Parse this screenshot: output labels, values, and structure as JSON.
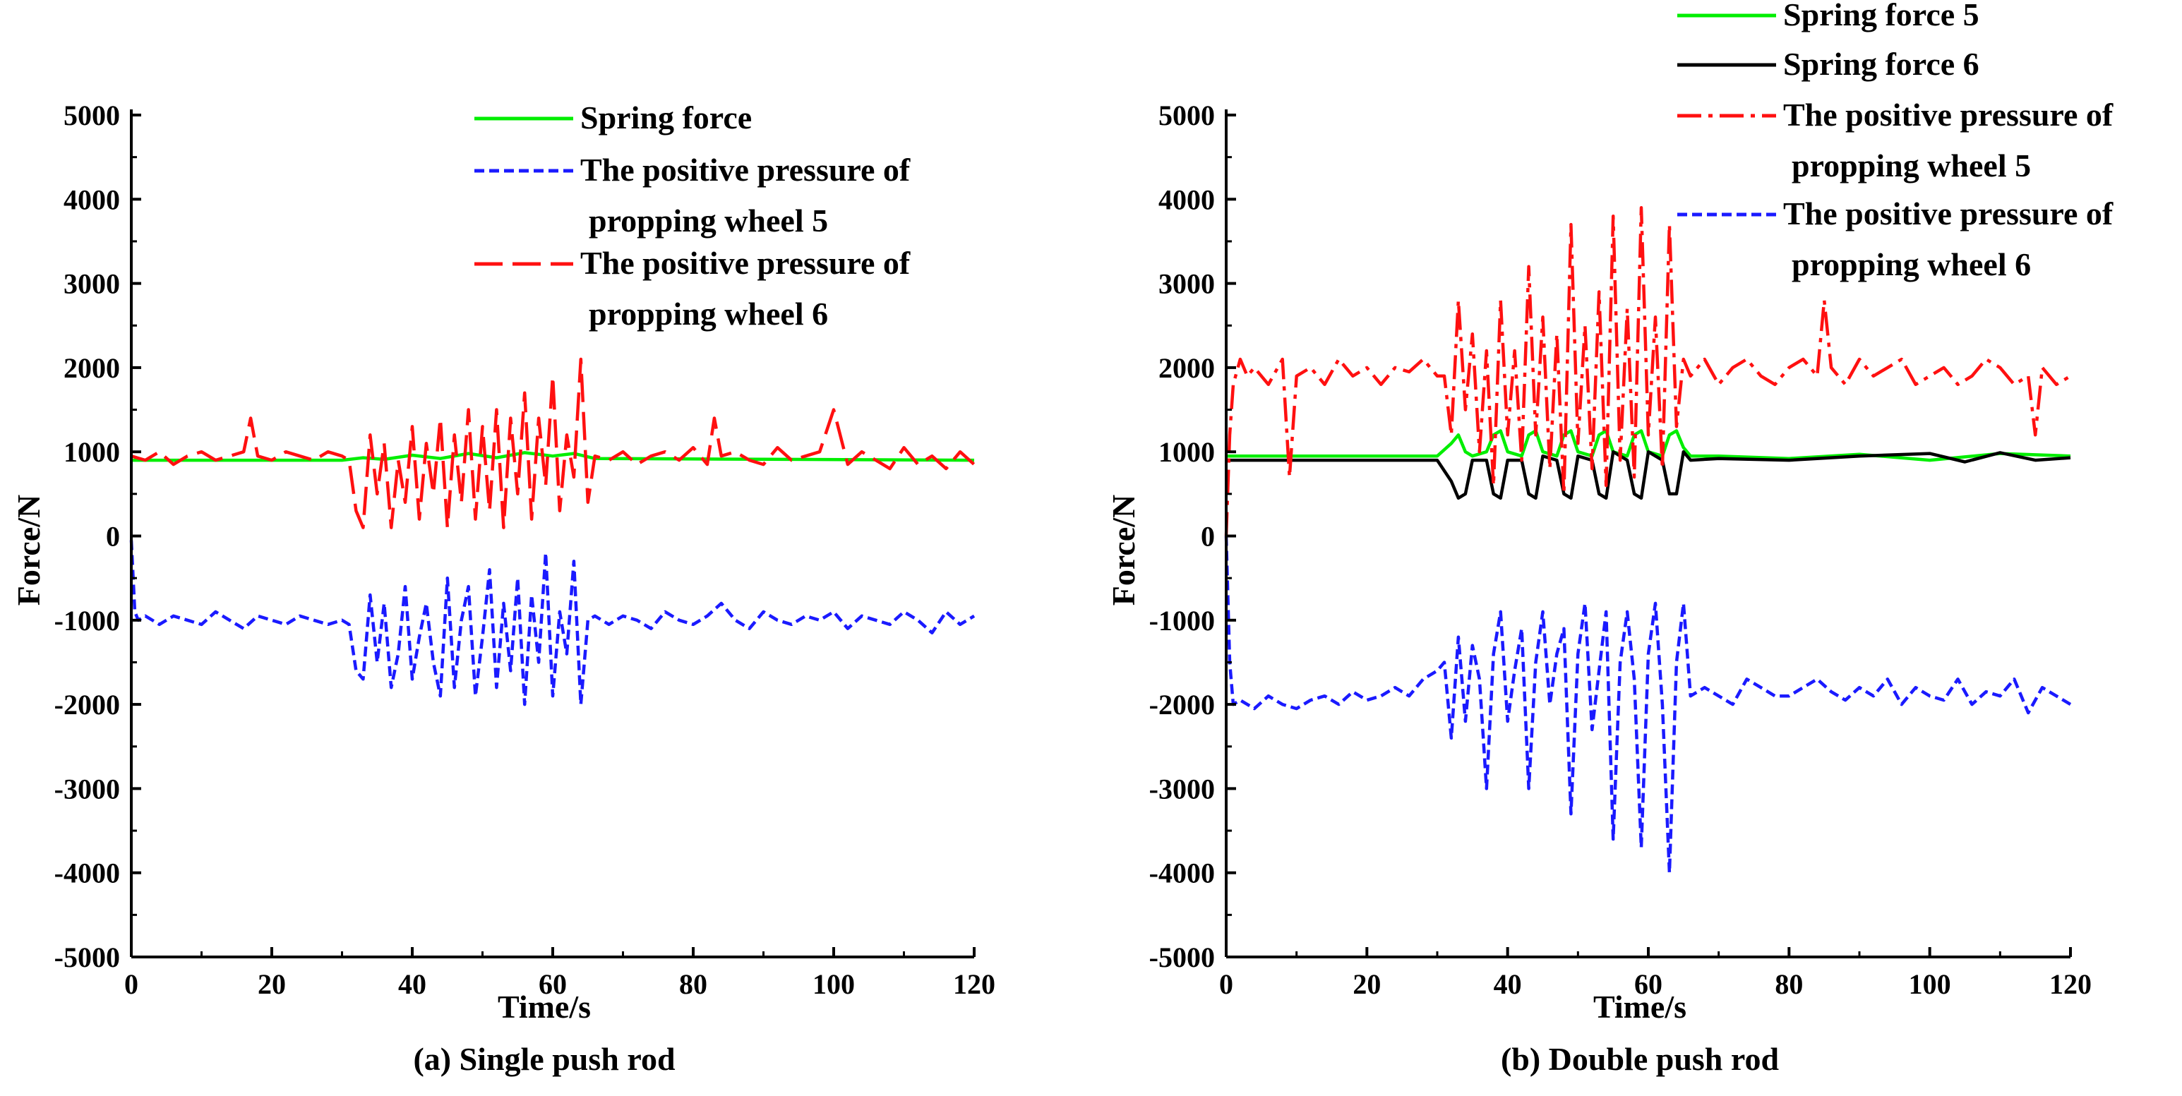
{
  "colors": {
    "green": "#00ee00",
    "blue": "#1a1aff",
    "red": "#ff1010",
    "black": "#000000",
    "axis": "#000000"
  },
  "chart_data": [
    {
      "type": "line",
      "caption": "(a) Single push rod",
      "xlabel": "Time/s",
      "ylabel": "Force/N",
      "xlim": [
        0,
        120
      ],
      "ylim": [
        -5000,
        5000
      ],
      "xticks": [
        0,
        20,
        40,
        60,
        80,
        100,
        120
      ],
      "yticks": [
        5000,
        4000,
        3000,
        2000,
        1000,
        0,
        -1000,
        -2000,
        -3000,
        -4000,
        -5000
      ],
      "legend": [
        {
          "lines": [
            "Spring force"
          ],
          "color": "green",
          "dash": "solid"
        },
        {
          "lines": [
            "The positive pressure of",
            "propping wheel 5"
          ],
          "color": "blue",
          "dash": "short"
        },
        {
          "lines": [
            "The positive pressure of",
            "propping wheel 6"
          ],
          "color": "red",
          "dash": "long"
        }
      ],
      "series": [
        {
          "name": "Spring force",
          "color": "green",
          "dash": "solid",
          "x": [
            0,
            30,
            33,
            36,
            40,
            44,
            48,
            52,
            56,
            60,
            63,
            66,
            120
          ],
          "y": [
            900,
            900,
            930,
            910,
            960,
            920,
            980,
            930,
            990,
            950,
            980,
            920,
            900
          ]
        },
        {
          "name": "The positive pressure of propping wheel 5",
          "color": "blue",
          "dash": "short",
          "x": [
            0,
            0.5,
            1,
            2,
            4,
            6,
            8,
            10,
            12,
            14,
            16,
            18,
            20,
            22,
            24,
            26,
            28,
            30,
            31,
            32,
            33,
            34,
            35,
            36,
            37,
            38,
            39,
            40,
            41,
            42,
            43,
            44,
            45,
            46,
            47,
            48,
            49,
            50,
            51,
            52,
            53,
            54,
            55,
            56,
            57,
            58,
            59,
            60,
            61,
            62,
            63,
            64,
            65,
            66,
            68,
            70,
            72,
            74,
            76,
            78,
            80,
            82,
            84,
            86,
            88,
            90,
            92,
            94,
            96,
            98,
            100,
            102,
            104,
            106,
            108,
            110,
            112,
            114,
            116,
            118,
            120
          ],
          "y": [
            -50,
            -900,
            -1000,
            -950,
            -1050,
            -950,
            -1000,
            -1050,
            -900,
            -1000,
            -1100,
            -950,
            -1000,
            -1050,
            -950,
            -1000,
            -1050,
            -1000,
            -1050,
            -1600,
            -1700,
            -700,
            -1500,
            -800,
            -1800,
            -1400,
            -600,
            -1700,
            -1200,
            -800,
            -1500,
            -1900,
            -500,
            -1800,
            -1000,
            -600,
            -1900,
            -1200,
            -400,
            -1800,
            -800,
            -1600,
            -500,
            -2000,
            -700,
            -1500,
            -200,
            -1900,
            -900,
            -1400,
            -300,
            -2000,
            -1000,
            -950,
            -1050,
            -950,
            -1000,
            -1100,
            -900,
            -1000,
            -1050,
            -950,
            -800,
            -1000,
            -1100,
            -900,
            -1000,
            -1050,
            -950,
            -1000,
            -900,
            -1100,
            -950,
            -1000,
            -1050,
            -900,
            -1000,
            -1150,
            -900,
            -1050,
            -950
          ]
        },
        {
          "name": "The positive pressure of propping wheel 6",
          "color": "red",
          "dash": "long",
          "x": [
            0,
            2,
            4,
            6,
            8,
            10,
            12,
            14,
            16,
            17,
            18,
            20,
            22,
            24,
            26,
            28,
            30,
            31,
            32,
            33,
            34,
            35,
            36,
            37,
            38,
            39,
            40,
            41,
            42,
            43,
            44,
            45,
            46,
            47,
            48,
            49,
            50,
            51,
            52,
            53,
            54,
            55,
            56,
            57,
            58,
            59,
            60,
            61,
            62,
            63,
            64,
            65,
            66,
            68,
            70,
            72,
            74,
            76,
            78,
            80,
            82,
            83,
            84,
            86,
            88,
            90,
            92,
            94,
            96,
            98,
            100,
            102,
            104,
            106,
            108,
            110,
            112,
            114,
            116,
            118,
            120
          ],
          "y": [
            950,
            900,
            1000,
            850,
            950,
            1000,
            900,
            950,
            1000,
            1400,
            950,
            900,
            1000,
            950,
            900,
            1000,
            950,
            900,
            300,
            100,
            1200,
            500,
            1100,
            100,
            900,
            400,
            1300,
            200,
            1100,
            500,
            1400,
            100,
            1200,
            400,
            1500,
            200,
            1300,
            300,
            1500,
            100,
            1400,
            500,
            1700,
            200,
            1400,
            600,
            1900,
            300,
            1200,
            700,
            2100,
            400,
            950,
            900,
            1000,
            850,
            950,
            1000,
            900,
            1050,
            850,
            1400,
            950,
            1000,
            900,
            850,
            1050,
            900,
            950,
            1000,
            1500,
            850,
            1000,
            900,
            800,
            1050,
            850,
            950,
            800,
            1000,
            850
          ]
        }
      ]
    },
    {
      "type": "line",
      "caption": "(b) Double push rod",
      "xlabel": "Time/s",
      "ylabel": "Force/N",
      "xlim": [
        0,
        120
      ],
      "ylim": [
        -5000,
        5000
      ],
      "xticks": [
        0,
        20,
        40,
        60,
        80,
        100,
        120
      ],
      "yticks": [
        5000,
        4000,
        3000,
        2000,
        1000,
        0,
        -1000,
        -2000,
        -3000,
        -4000,
        -5000
      ],
      "legend": [
        {
          "lines": [
            "Spring force 5"
          ],
          "color": "green",
          "dash": "solid"
        },
        {
          "lines": [
            "Spring force 6"
          ],
          "color": "black",
          "dash": "solid"
        },
        {
          "lines": [
            "The positive pressure of",
            "propping wheel 5"
          ],
          "color": "red",
          "dash": "dashdot"
        },
        {
          "lines": [
            "The positive pressure of",
            "propping wheel 6"
          ],
          "color": "blue",
          "dash": "short"
        }
      ],
      "series": [
        {
          "name": "Spring force 5",
          "color": "green",
          "dash": "solid",
          "x": [
            0,
            30,
            32,
            33,
            34,
            35,
            37,
            38,
            39,
            40,
            42,
            43,
            44,
            45,
            47,
            48,
            49,
            50,
            52,
            53,
            54,
            55,
            57,
            58,
            59,
            60,
            62,
            63,
            64,
            65,
            66,
            70,
            80,
            90,
            100,
            110,
            120
          ],
          "y": [
            950,
            950,
            1100,
            1200,
            1000,
            950,
            1000,
            1200,
            1250,
            1000,
            950,
            1200,
            1250,
            1000,
            950,
            1200,
            1250,
            1000,
            950,
            1200,
            1250,
            1000,
            950,
            1200,
            1250,
            1000,
            950,
            1200,
            1250,
            1050,
            950,
            950,
            920,
            970,
            900,
            980,
            950
          ]
        },
        {
          "name": "Spring force 6",
          "color": "black",
          "dash": "solid",
          "x": [
            0,
            30,
            32,
            33,
            34,
            35,
            37,
            38,
            39,
            40,
            42,
            43,
            44,
            45,
            47,
            48,
            49,
            50,
            52,
            53,
            54,
            55,
            57,
            58,
            59,
            60,
            62,
            63,
            64,
            65,
            66,
            70,
            80,
            90,
            100,
            105,
            110,
            115,
            120
          ],
          "y": [
            900,
            900,
            650,
            450,
            500,
            900,
            900,
            500,
            450,
            900,
            900,
            500,
            450,
            950,
            900,
            500,
            450,
            950,
            900,
            500,
            450,
            1000,
            900,
            500,
            450,
            1000,
            900,
            500,
            500,
            1000,
            900,
            920,
            900,
            950,
            980,
            880,
            990,
            900,
            930
          ]
        },
        {
          "name": "The positive pressure of propping wheel 5",
          "color": "red",
          "dash": "dashdot",
          "x": [
            0,
            0.5,
            1,
            2,
            3,
            4,
            6,
            8,
            9,
            10,
            12,
            14,
            16,
            18,
            20,
            22,
            24,
            26,
            28,
            30,
            31,
            32,
            33,
            34,
            35,
            36,
            37,
            38,
            39,
            40,
            41,
            42,
            43,
            44,
            45,
            46,
            47,
            48,
            49,
            50,
            51,
            52,
            53,
            54,
            55,
            56,
            57,
            58,
            59,
            60,
            61,
            62,
            63,
            64,
            65,
            66,
            68,
            70,
            72,
            74,
            76,
            78,
            80,
            82,
            84,
            85,
            86,
            88,
            90,
            92,
            94,
            96,
            98,
            100,
            102,
            104,
            106,
            108,
            110,
            112,
            114,
            115,
            116,
            118,
            120
          ],
          "y": [
            0,
            1200,
            1800,
            2100,
            1900,
            2000,
            1800,
            2100,
            700,
            1900,
            2000,
            1800,
            2100,
            1900,
            2000,
            1800,
            2000,
            1950,
            2100,
            1900,
            1900,
            1200,
            2800,
            1500,
            2400,
            1000,
            2200,
            600,
            2800,
            1200,
            2200,
            900,
            3200,
            1200,
            2600,
            800,
            2400,
            500,
            3700,
            1100,
            2500,
            800,
            2900,
            600,
            3800,
            900,
            2700,
            700,
            3900,
            1200,
            2600,
            800,
            3700,
            1300,
            2100,
            1900,
            2100,
            1800,
            2000,
            2100,
            1900,
            1800,
            2000,
            2100,
            1900,
            2800,
            2000,
            1800,
            2100,
            1900,
            2000,
            2100,
            1800,
            1900,
            2000,
            1800,
            1900,
            2100,
            2000,
            1800,
            1900,
            1200,
            2000,
            1800,
            1900
          ]
        },
        {
          "name": "The positive pressure of propping wheel 6",
          "color": "blue",
          "dash": "short",
          "x": [
            0,
            0.5,
            1,
            2,
            4,
            6,
            8,
            10,
            12,
            14,
            16,
            18,
            20,
            22,
            24,
            26,
            28,
            30,
            31,
            32,
            33,
            34,
            35,
            36,
            37,
            38,
            39,
            40,
            41,
            42,
            43,
            44,
            45,
            46,
            47,
            48,
            49,
            50,
            51,
            52,
            53,
            54,
            55,
            56,
            57,
            58,
            59,
            60,
            61,
            62,
            63,
            64,
            65,
            66,
            68,
            70,
            72,
            74,
            76,
            78,
            80,
            82,
            84,
            86,
            88,
            90,
            92,
            94,
            96,
            98,
            100,
            102,
            104,
            106,
            108,
            110,
            112,
            114,
            116,
            118,
            120
          ],
          "y": [
            0,
            -1500,
            -2000,
            -1950,
            -2050,
            -1900,
            -2000,
            -2050,
            -1950,
            -1900,
            -2000,
            -1850,
            -1950,
            -1900,
            -1800,
            -1900,
            -1700,
            -1600,
            -1500,
            -2400,
            -1200,
            -2200,
            -1300,
            -1700,
            -3000,
            -1400,
            -900,
            -2200,
            -1600,
            -1100,
            -3000,
            -1500,
            -900,
            -2000,
            -1400,
            -1100,
            -3300,
            -1400,
            -800,
            -2300,
            -1600,
            -900,
            -3600,
            -1500,
            -900,
            -1700,
            -3700,
            -1400,
            -800,
            -2000,
            -4000,
            -1500,
            -800,
            -1900,
            -1800,
            -1900,
            -2000,
            -1700,
            -1800,
            -1900,
            -1900,
            -1800,
            -1700,
            -1850,
            -1950,
            -1800,
            -1900,
            -1700,
            -2000,
            -1800,
            -1900,
            -1950,
            -1700,
            -2000,
            -1850,
            -1900,
            -1700,
            -2100,
            -1800,
            -1900,
            -2000
          ]
        }
      ]
    }
  ]
}
